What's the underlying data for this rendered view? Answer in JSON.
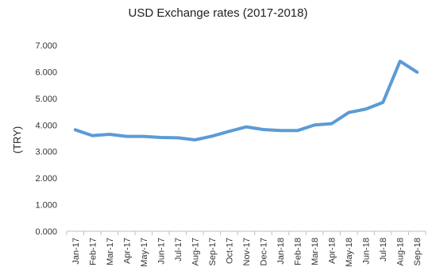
{
  "chart_data": {
    "type": "line",
    "title": "USD Exchange rates (2017-2018)",
    "xlabel": "",
    "ylabel": "(TRY)",
    "categories": [
      "Jan-17",
      "Feb-17",
      "Mar-17",
      "Apr-17",
      "May-17",
      "Jun-17",
      "Jul-17",
      "Aug-17",
      "Sep-17",
      "Oct-17",
      "Nov-17",
      "Dec-17",
      "Jan-18",
      "Feb-18",
      "Mar-18",
      "Apr-18",
      "May-18",
      "Jun-18",
      "Jul-18",
      "Aug-18",
      "Sep-18"
    ],
    "series": [
      {
        "values": [
          3.82,
          3.6,
          3.65,
          3.57,
          3.57,
          3.53,
          3.52,
          3.44,
          3.58,
          3.76,
          3.93,
          3.83,
          3.79,
          3.79,
          4.0,
          4.05,
          4.47,
          4.6,
          4.85,
          6.4,
          5.99
        ]
      }
    ],
    "ylim": [
      0,
      7
    ],
    "yticks": [
      "0.000",
      "1.000",
      "2.000",
      "3.000",
      "4.000",
      "5.000",
      "6.000",
      "7.000"
    ],
    "grid": false,
    "line_color": "#5b9bd5",
    "axis_color": "#c0c0c0"
  }
}
